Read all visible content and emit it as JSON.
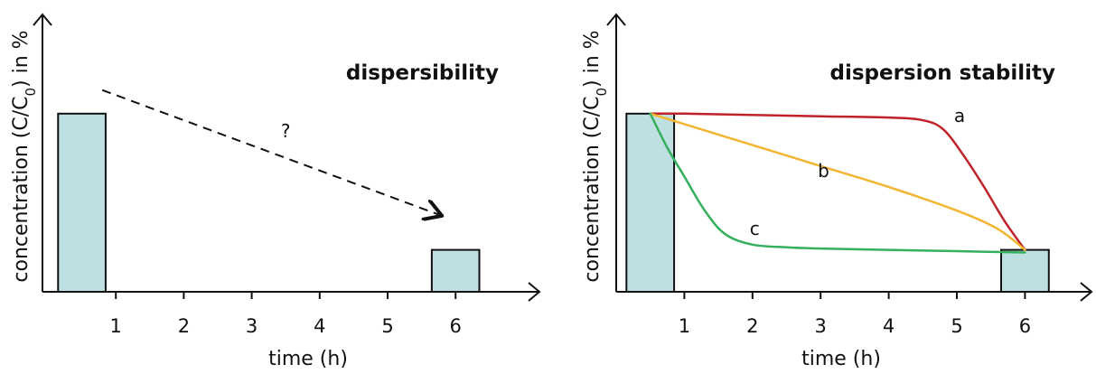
{
  "chart_data": [
    {
      "type": "bar",
      "title": "dispersibility",
      "xlabel": "time (h)",
      "ylabel": "concentration (C/C",
      "ylabel_sub": "0",
      "ylabel_suffix": ") in %",
      "x_ticks": [
        "1",
        "2",
        "3",
        "4",
        "5",
        "6"
      ],
      "xlim": [
        0,
        6.9
      ],
      "ylim": [
        0,
        100
      ],
      "bars": [
        {
          "x_center": 0.5,
          "width": 0.7,
          "value": 68
        },
        {
          "x_center": 6.0,
          "width": 0.7,
          "value": 16
        }
      ],
      "arrow": {
        "from": [
          0.8,
          77
        ],
        "to": [
          5.8,
          29
        ],
        "style": "dashed"
      },
      "annotation": "?",
      "annotation_at": [
        3.5,
        59
      ]
    },
    {
      "type": "line",
      "title": "dispersion stability",
      "xlabel": "time (h)",
      "ylabel": "concentration (C/C",
      "ylabel_sub": "0",
      "ylabel_suffix": ") in %",
      "x_ticks": [
        "1",
        "2",
        "3",
        "4",
        "5",
        "6"
      ],
      "xlim": [
        0,
        6.9
      ],
      "ylim": [
        0,
        100
      ],
      "bars": [
        {
          "x_center": 0.5,
          "width": 0.7,
          "value": 68
        },
        {
          "x_center": 6.0,
          "width": 0.7,
          "value": 16
        }
      ],
      "series": [
        {
          "name": "a",
          "color": "#c0222a",
          "x": [
            0.5,
            1.0,
            2.0,
            3.0,
            4.0,
            4.5,
            4.8,
            5.1,
            5.4,
            5.7,
            6.0
          ],
          "y": [
            68,
            68,
            67.5,
            67,
            66.5,
            65.5,
            62,
            52,
            40,
            27,
            16
          ]
        },
        {
          "name": "b",
          "color": "#f2b632",
          "x": [
            0.5,
            1.0,
            2.0,
            3.0,
            4.0,
            5.0,
            5.6,
            6.0
          ],
          "y": [
            68,
            64,
            56,
            48,
            40,
            31,
            24,
            16
          ]
        },
        {
          "name": "c",
          "color": "#35b05c",
          "x": [
            0.5,
            0.75,
            1.0,
            1.3,
            1.6,
            2.0,
            2.5,
            3.0,
            4.0,
            5.0,
            6.0
          ],
          "y": [
            68,
            55,
            44,
            31,
            22,
            18,
            17,
            16.5,
            16,
            15.5,
            15
          ]
        }
      ],
      "label_points": {
        "a": [
          4.8,
          62
        ],
        "b": [
          2.8,
          41
        ],
        "c": [
          1.8,
          19
        ]
      }
    }
  ],
  "colors": {
    "bar_fill": "#bfe0e2",
    "axis": "#111111"
  }
}
